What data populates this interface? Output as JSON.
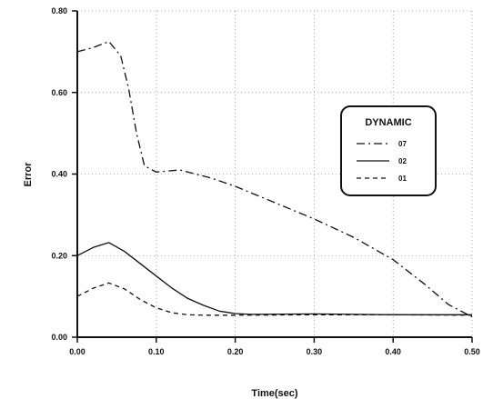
{
  "chart_data": {
    "type": "line",
    "xlabel": "Time(sec)",
    "ylabel": "Error",
    "xlim": [
      0,
      0.5
    ],
    "ylim": [
      0,
      0.8
    ],
    "x_ticks": [
      "0.00",
      "0.10",
      "0.20",
      "0.30",
      "0.40",
      "0.50"
    ],
    "y_ticks": [
      "0.00",
      "0.20",
      "0.40",
      "0.60",
      "0.80"
    ],
    "grid": true,
    "legend": {
      "title": "DYNAMIC",
      "placement": "right"
    },
    "series": [
      {
        "name": "07",
        "style": "dash-dot",
        "x": [
          0,
          0.02,
          0.04,
          0.055,
          0.065,
          0.075,
          0.085,
          0.1,
          0.13,
          0.17,
          0.2,
          0.25,
          0.3,
          0.35,
          0.4,
          0.44,
          0.47,
          0.5
        ],
        "y": [
          0.7,
          0.71,
          0.725,
          0.69,
          0.61,
          0.5,
          0.42,
          0.405,
          0.41,
          0.39,
          0.37,
          0.33,
          0.29,
          0.245,
          0.19,
          0.13,
          0.08,
          0.05
        ]
      },
      {
        "name": "02",
        "style": "solid",
        "x": [
          0,
          0.02,
          0.04,
          0.06,
          0.08,
          0.1,
          0.12,
          0.14,
          0.16,
          0.18,
          0.2,
          0.22,
          0.3,
          0.4,
          0.5
        ],
        "y": [
          0.2,
          0.22,
          0.232,
          0.21,
          0.18,
          0.15,
          0.12,
          0.095,
          0.078,
          0.064,
          0.058,
          0.056,
          0.057,
          0.055,
          0.055
        ]
      },
      {
        "name": "01",
        "style": "dashed",
        "x": [
          0,
          0.02,
          0.04,
          0.06,
          0.08,
          0.1,
          0.12,
          0.14,
          0.16,
          0.2,
          0.3,
          0.4,
          0.5
        ],
        "y": [
          0.1,
          0.12,
          0.133,
          0.118,
          0.092,
          0.072,
          0.06,
          0.055,
          0.054,
          0.054,
          0.055,
          0.055,
          0.054
        ]
      }
    ]
  }
}
